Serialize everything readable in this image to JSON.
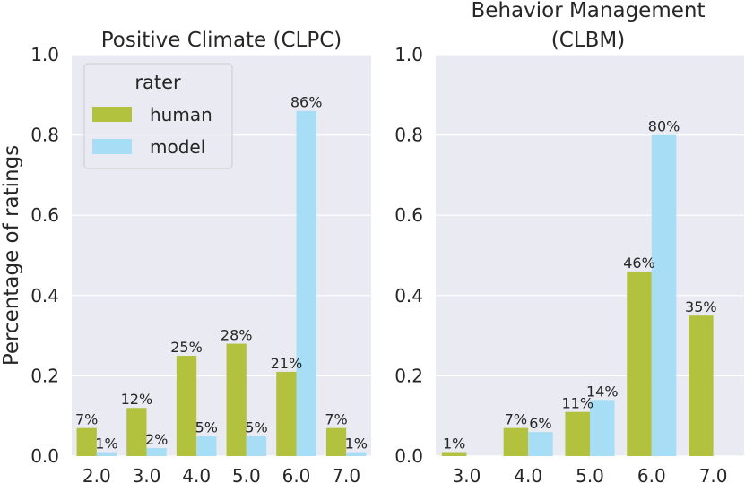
{
  "legend": {
    "title": "rater",
    "entries": [
      {
        "name": "human",
        "color": "#b2c13e"
      },
      {
        "name": "model",
        "color": "#a8def5"
      }
    ]
  },
  "chart_data": [
    {
      "type": "bar",
      "title": [
        "Positive Climate (CLPC)"
      ],
      "ylabel": "Percentage of ratings",
      "xlabel": "",
      "ylim": [
        0,
        1.0
      ],
      "yticks": [
        "0.0",
        "0.2",
        "0.4",
        "0.6",
        "0.8",
        "1.0"
      ],
      "categories": [
        "2.0",
        "3.0",
        "4.0",
        "5.0",
        "6.0",
        "7.0"
      ],
      "series": [
        {
          "name": "human",
          "values": [
            0.07,
            0.12,
            0.25,
            0.28,
            0.21,
            0.07
          ],
          "labels": [
            "7%",
            "12%",
            "25%",
            "28%",
            "21%",
            "7%"
          ]
        },
        {
          "name": "model",
          "values": [
            0.01,
            0.02,
            0.05,
            0.05,
            0.86,
            0.01
          ],
          "labels": [
            "1%",
            "2%",
            "5%",
            "5%",
            "86%",
            "1%"
          ]
        }
      ]
    },
    {
      "type": "bar",
      "title": [
        "Behavior Management",
        "(CLBM)"
      ],
      "ylabel": "",
      "xlabel": "",
      "ylim": [
        0,
        1.0
      ],
      "yticks": [
        "0.0",
        "0.2",
        "0.4",
        "0.6",
        "0.8",
        "1.0"
      ],
      "categories": [
        "3.0",
        "4.0",
        "5.0",
        "6.0",
        "7.0"
      ],
      "series": [
        {
          "name": "human",
          "values": [
            0.01,
            0.07,
            0.11,
            0.46,
            0.35
          ],
          "labels": [
            "1%",
            "7%",
            "11%",
            "46%",
            "35%"
          ]
        },
        {
          "name": "model",
          "values": [
            null,
            0.06,
            0.14,
            0.8,
            null
          ],
          "labels": [
            "",
            "6%",
            "14%",
            "80%",
            ""
          ]
        }
      ]
    }
  ]
}
